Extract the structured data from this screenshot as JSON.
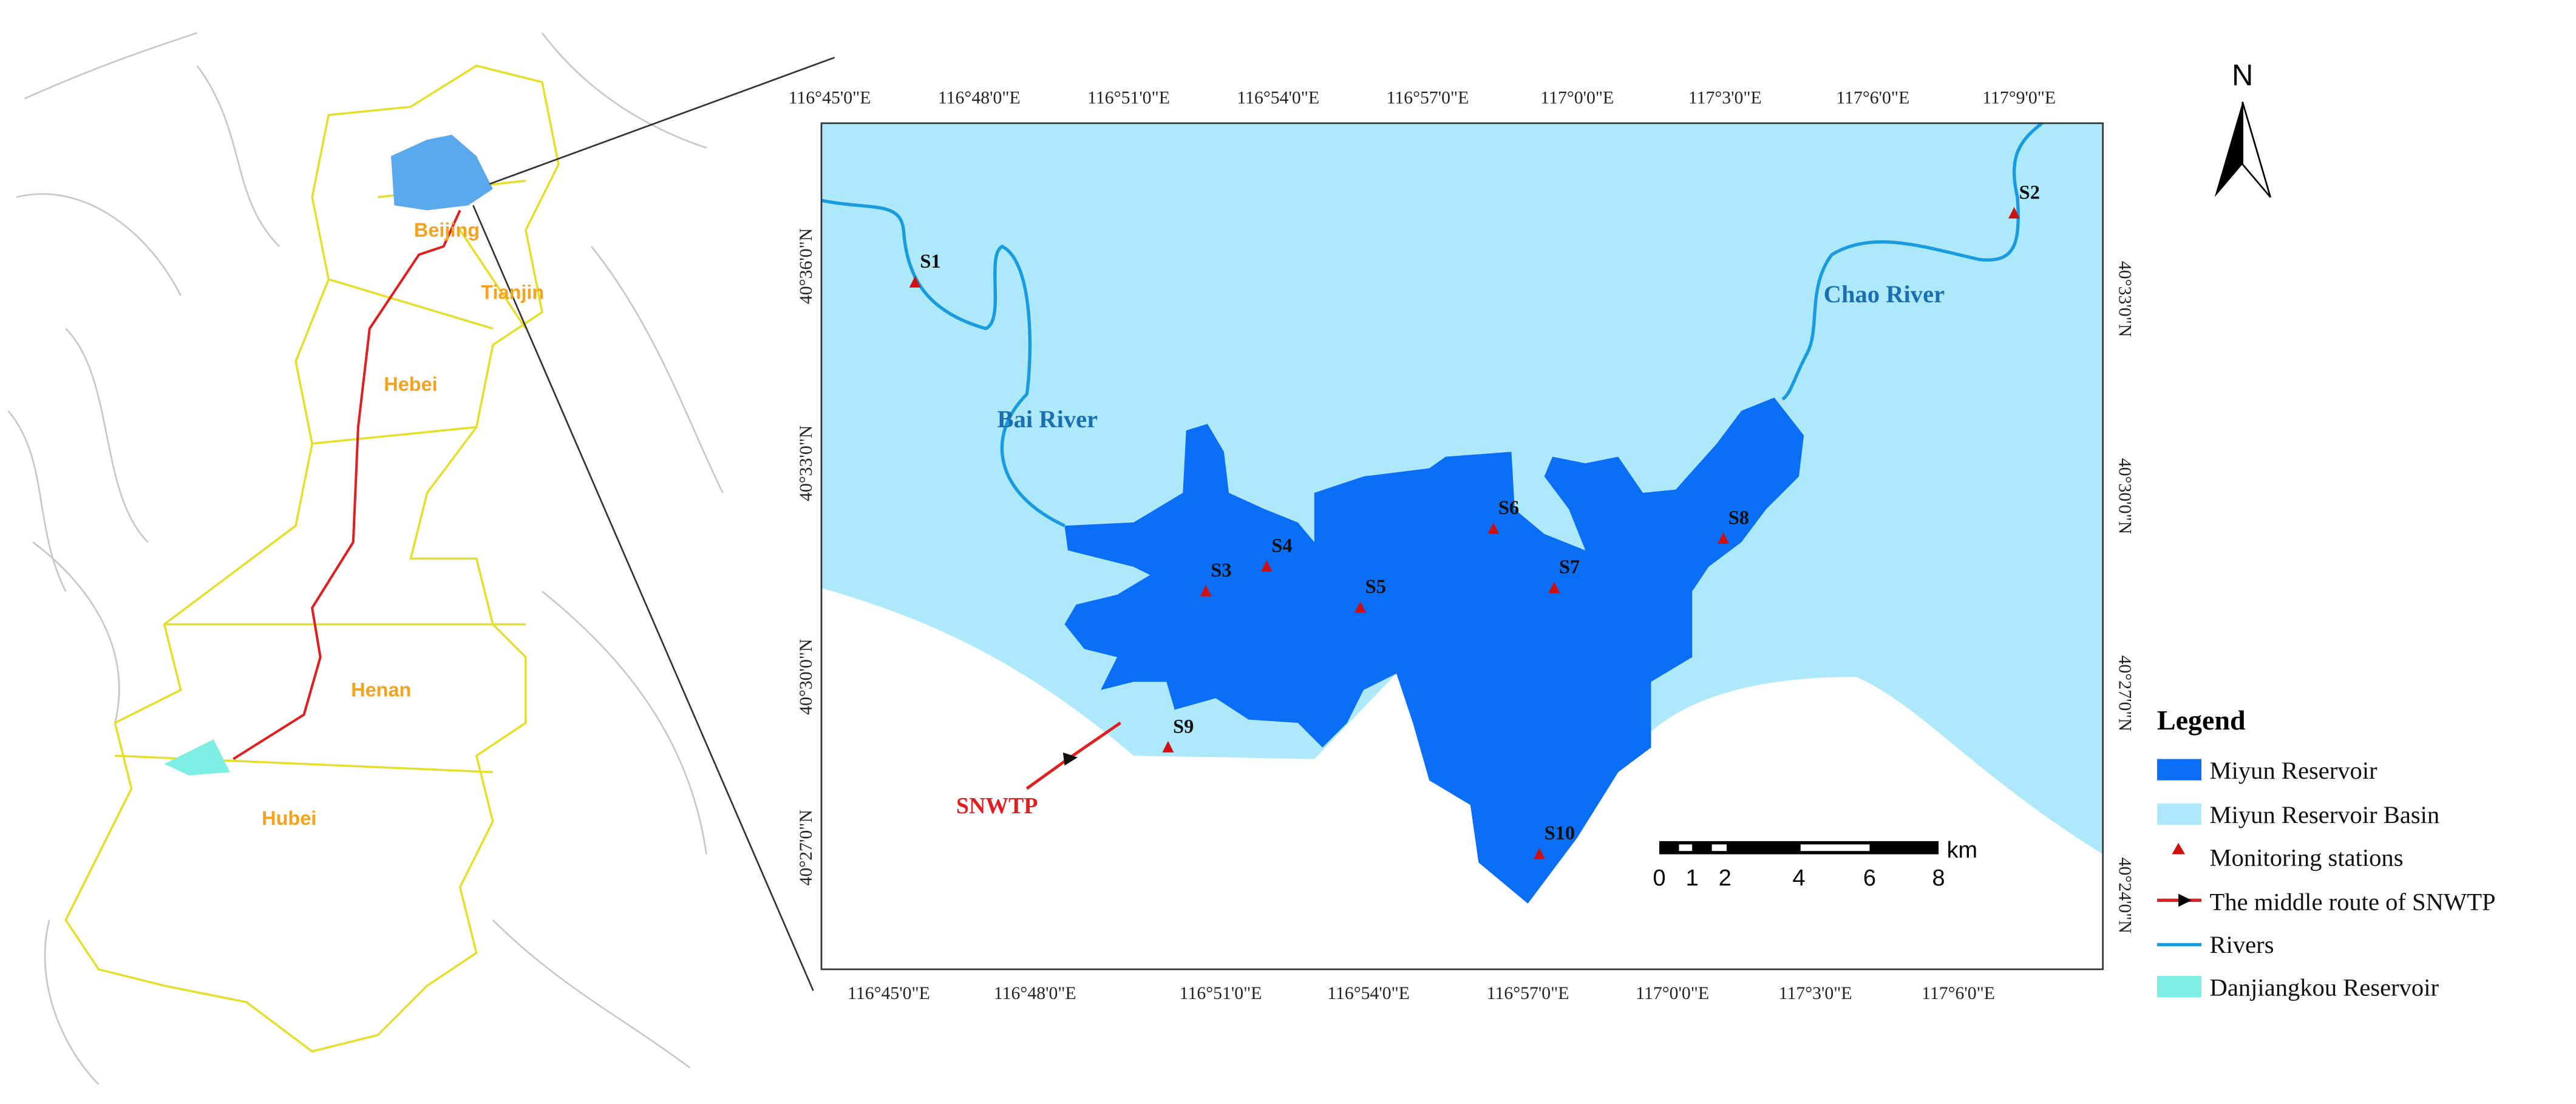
{
  "overview_map": {
    "provinces": [
      "Beijing",
      "Tianjin",
      "Hebei",
      "Henan",
      "Hubei"
    ]
  },
  "detail_map": {
    "top_axis_labels": [
      "116°45'0\"E",
      "116°48'0\"E",
      "116°51'0\"E",
      "116°54'0\"E",
      "116°57'0\"E",
      "117°0'0\"E",
      "117°3'0\"E",
      "117°6'0\"E",
      "117°9'0\"E"
    ],
    "bottom_axis_labels": [
      "116°45'0\"E",
      "116°48'0\"E",
      "116°51'0\"E",
      "116°54'0\"E",
      "116°57'0\"E",
      "117°0'0\"E",
      "117°3'0\"E",
      "117°6'0\"E"
    ],
    "left_axis_labels": [
      "40°36'0\"N",
      "40°33'0\"N",
      "40°30'0\"N",
      "40°27'0\"N"
    ],
    "right_axis_labels": [
      "40°33'0\"N",
      "40°30'0\"N",
      "40°27'0\"N",
      "40°24'0\"N"
    ],
    "stations": [
      "S1",
      "S2",
      "S3",
      "S4",
      "S5",
      "S6",
      "S7",
      "S8",
      "S9",
      "S10"
    ],
    "rivers": [
      "Bai River",
      "Chao River"
    ],
    "route_label": "SNWTP",
    "scale_bar": {
      "labels": [
        0,
        1,
        2,
        4,
        6,
        8
      ],
      "unit": "km"
    }
  },
  "north_arrow": "N",
  "legend": {
    "title": "Legend",
    "items": [
      "Miyun Reservoir",
      "Miyun Reservoir Basin",
      "Monitoring stations",
      "The middle route of SNWTP",
      "Rivers",
      "Danjiangkou Reservoir"
    ]
  }
}
